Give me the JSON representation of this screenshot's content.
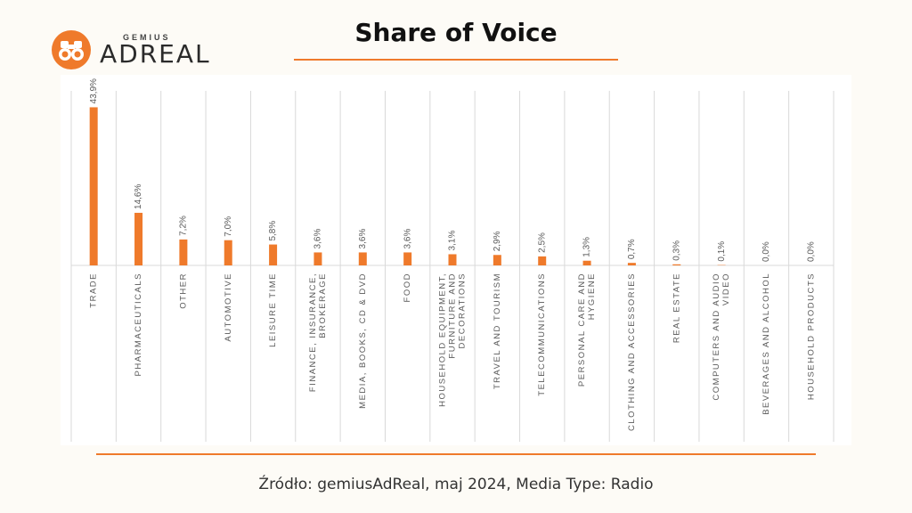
{
  "logo": {
    "small": "GEMIUS",
    "big": "ADREAL",
    "icon": "binoculars-icon"
  },
  "title": "Share of Voice",
  "source": "Źródło: gemiusAdReal, maj 2024, Media Type: Radio",
  "colors": {
    "accent": "#ef7a2b",
    "grid": "#d9d9d9",
    "text": "#595959"
  },
  "chart_data": {
    "type": "bar",
    "title": "",
    "xlabel": "",
    "ylabel": "",
    "ylim": [
      0,
      45
    ],
    "grid": "vertical",
    "categories": [
      [
        "TRADE"
      ],
      [
        "PHARMACEUTICALS"
      ],
      [
        "OTHER"
      ],
      [
        "AUTOMOTIVE"
      ],
      [
        "LEISURE TIME"
      ],
      [
        "FINANCE, INSURANCE,",
        "BROKERAGE"
      ],
      [
        "MEDIA, BOOKS, CD & DVD"
      ],
      [
        "FOOD"
      ],
      [
        "HOUSEHOLD EQUIPMENT,",
        "FURNITURE AND",
        "DECORATIONS"
      ],
      [
        "TRAVEL AND TOURISM"
      ],
      [
        "TELECOMMUNICATIONS"
      ],
      [
        "PERSONAL CARE AND",
        "HYGIENE"
      ],
      [
        "CLOTHING AND ACCESSORIES"
      ],
      [
        "REAL ESTATE"
      ],
      [
        "COMPUTERS AND AUDIO",
        "VIDEO"
      ],
      [
        "BEVERAGES AND ALCOHOL"
      ],
      [
        "HOUSEHOLD PRODUCTS"
      ]
    ],
    "values": [
      43.9,
      14.6,
      7.2,
      7.0,
      5.8,
      3.6,
      3.6,
      3.6,
      3.1,
      2.9,
      2.5,
      1.3,
      0.7,
      0.3,
      0.1,
      0.0,
      0.0
    ],
    "labels": [
      "43,9%",
      "14,6%",
      "7,2%",
      "7,0%",
      "5,8%",
      "3,6%",
      "3,6%",
      "3,6%",
      "3,1%",
      "2,9%",
      "2,5%",
      "1,3%",
      "0,7%",
      "0,3%",
      "0,1%",
      "0,0%",
      "0,0%"
    ]
  }
}
